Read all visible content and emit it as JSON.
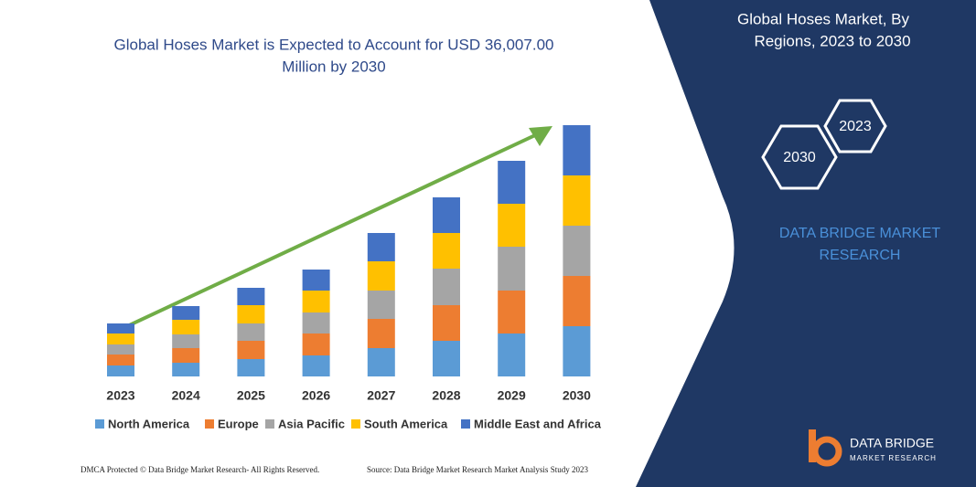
{
  "chart_data": {
    "type": "stacked-bar",
    "title": "Global Hoses Market is Expected to Account for USD 36,007.00",
    "title_line2": "Million by 2030",
    "categories": [
      "2023",
      "2024",
      "2025",
      "2026",
      "2027",
      "2028",
      "2029",
      "2030"
    ],
    "series": [
      {
        "name": "North America",
        "color": "#5b9bd5",
        "values": [
          12,
          15,
          19,
          23,
          31,
          39,
          47,
          55
        ]
      },
      {
        "name": "Europe",
        "color": "#ed7d31",
        "values": [
          12,
          16,
          20,
          24,
          32,
          39,
          47,
          55
        ]
      },
      {
        "name": "Asia Pacific",
        "color": "#a5a5a5",
        "values": [
          11,
          15,
          19,
          23,
          31,
          40,
          48,
          55
        ]
      },
      {
        "name": "South America",
        "color": "#ffc000",
        "values": [
          12,
          16,
          20,
          24,
          32,
          39,
          47,
          55
        ]
      },
      {
        "name": "Middle East and Africa",
        "color": "#4472c4",
        "values": [
          11,
          15,
          19,
          23,
          31,
          39,
          47,
          55
        ]
      }
    ]
  },
  "panel": {
    "title": "Global Hoses Market, By",
    "title_line2": "Regions, 2023 to 2030",
    "hex_a": "2023",
    "hex_b": "2030",
    "brand": "DATA BRIDGE MARKET",
    "brand_line2": "RESEARCH"
  },
  "logo": {
    "name": "DATA BRIDGE",
    "tagline": "MARKET RESEARCH"
  },
  "footer": {
    "left": "DMCA Protected © Data Bridge Market Research-  All Rights Reserved.",
    "right": "Source: Data Bridge Market Research  Market Analysis Study 2023"
  }
}
